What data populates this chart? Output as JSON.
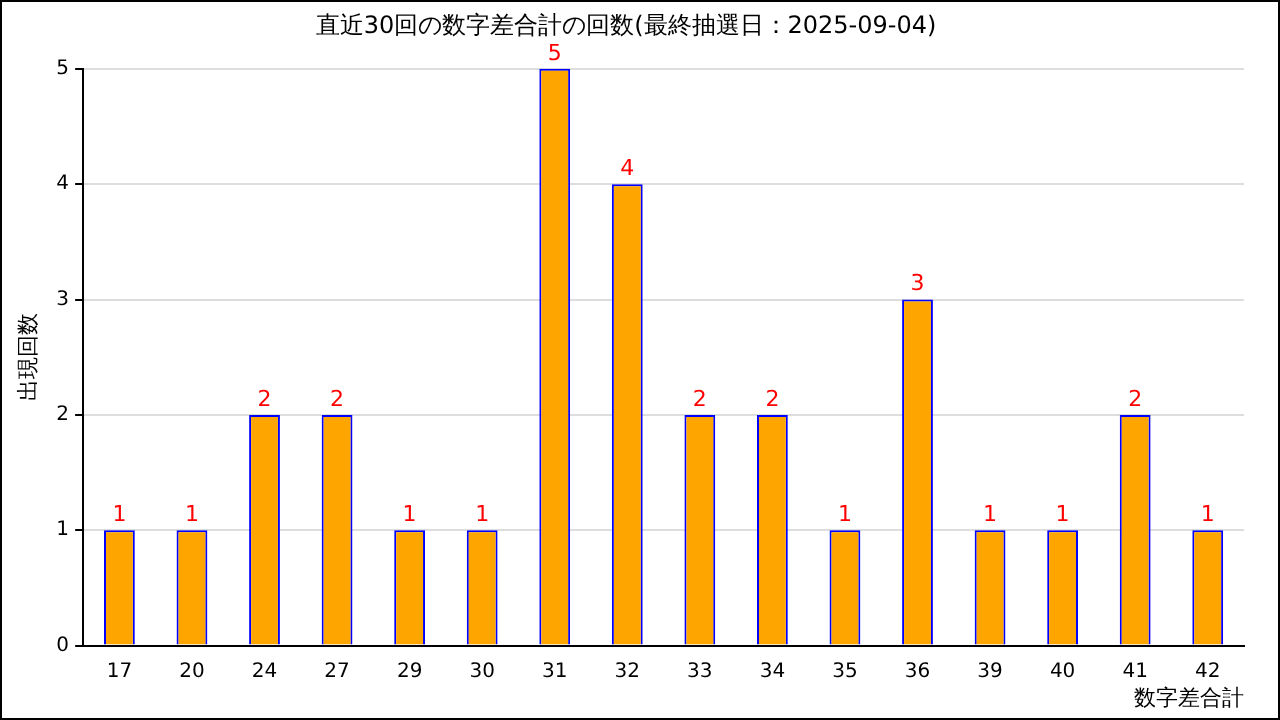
{
  "chart_data": {
    "type": "bar",
    "title": "直近30回の数字差合計の回数(最終抽選日：2025-09-04)",
    "xlabel": "数字差合計",
    "ylabel": "出現回数",
    "categories": [
      "17",
      "20",
      "24",
      "27",
      "29",
      "30",
      "31",
      "32",
      "33",
      "34",
      "35",
      "36",
      "39",
      "40",
      "41",
      "42"
    ],
    "values": [
      1,
      1,
      2,
      2,
      1,
      1,
      5,
      4,
      2,
      2,
      1,
      3,
      1,
      1,
      2,
      1
    ],
    "color": "#ffa500",
    "ylim": [
      0,
      5
    ],
    "yticks": [
      0,
      1,
      2,
      3,
      4,
      5
    ],
    "grid": "y",
    "data_labels": true,
    "legend": false
  }
}
